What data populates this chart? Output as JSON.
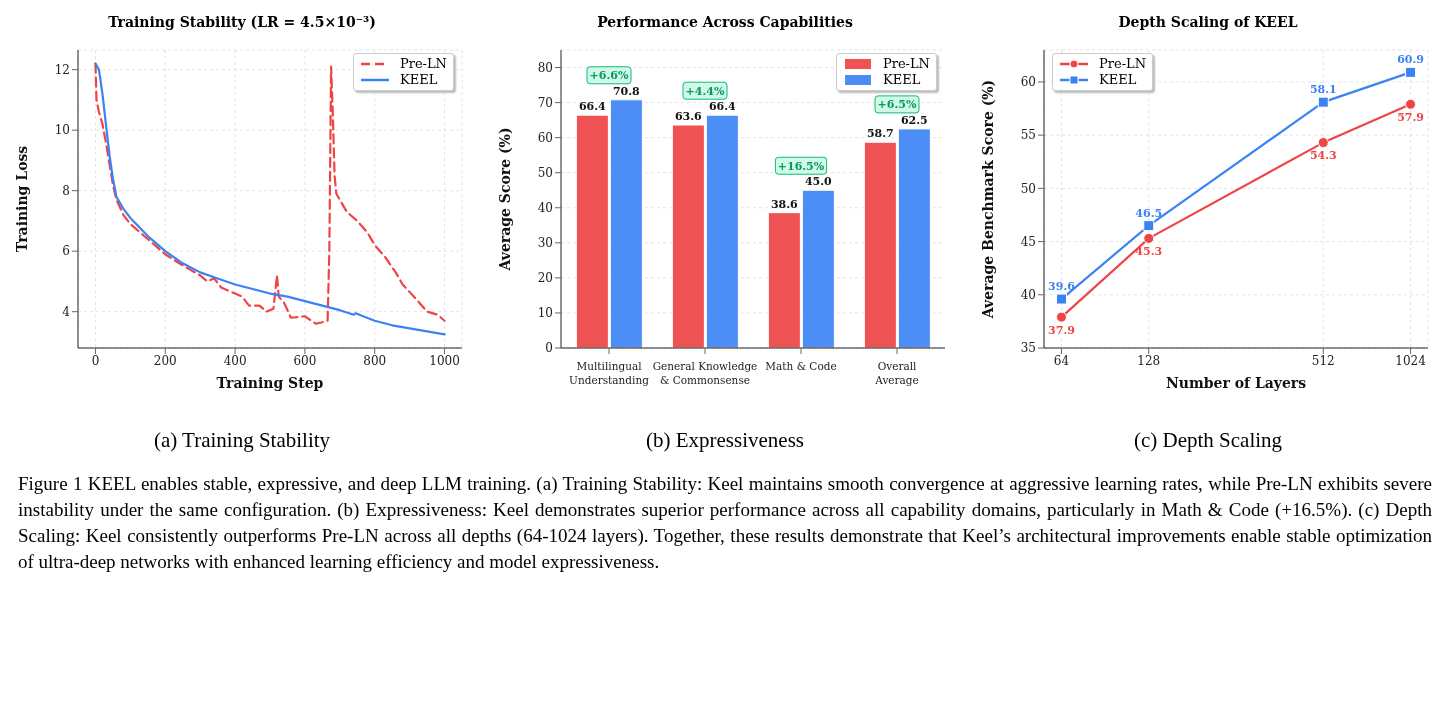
{
  "chart_data": [
    {
      "type": "line",
      "title": "Training Stability (LR = 4.5×10⁻³)",
      "xlabel": "Training Step",
      "ylabel": "Training Loss",
      "xlim": [
        -50,
        1050
      ],
      "xticks": [
        0,
        200,
        400,
        600,
        800,
        1000
      ],
      "ylim": [
        2.8,
        12.65
      ],
      "yticks": [
        4,
        6,
        8,
        10,
        12
      ],
      "grid": true,
      "legend": "top right",
      "series": [
        {
          "name": "Pre-LN",
          "color": "#ef4444",
          "line_style": "dashed",
          "x": [
            0,
            3,
            10,
            20,
            30,
            40,
            50,
            60,
            80,
            100,
            130,
            160,
            200,
            240,
            270,
            300,
            320,
            340,
            360,
            400,
            420,
            440,
            470,
            490,
            510,
            520,
            525,
            540,
            560,
            600,
            632,
            650,
            665,
            670,
            675,
            680,
            685,
            690,
            720,
            750,
            780,
            800,
            830,
            860,
            880,
            920,
            950,
            980,
            1000
          ],
          "values": [
            12.2,
            11.0,
            10.6,
            10.2,
            9.6,
            8.9,
            8.2,
            7.7,
            7.2,
            6.9,
            6.6,
            6.3,
            5.9,
            5.6,
            5.4,
            5.2,
            5.0,
            5.1,
            4.8,
            4.6,
            4.5,
            4.2,
            4.2,
            4.0,
            4.1,
            5.2,
            4.5,
            4.3,
            3.8,
            3.85,
            3.6,
            3.65,
            3.7,
            6.0,
            12.1,
            10.5,
            8.5,
            7.9,
            7.3,
            7.0,
            6.6,
            6.2,
            5.8,
            5.3,
            4.9,
            4.4,
            4.0,
            3.9,
            3.7
          ]
        },
        {
          "name": "KEEL",
          "color": "#3b82f6",
          "line_style": "solid",
          "x": [
            0,
            10,
            20,
            30,
            40,
            50,
            60,
            80,
            100,
            150,
            200,
            250,
            300,
            350,
            400,
            450,
            500,
            550,
            600,
            650,
            700,
            740,
            745,
            800,
            850,
            900,
            950,
            1000
          ],
          "values": [
            12.2,
            12.0,
            11.2,
            10.2,
            9.2,
            8.4,
            7.8,
            7.4,
            7.1,
            6.5,
            6.0,
            5.6,
            5.3,
            5.1,
            4.9,
            4.75,
            4.6,
            4.5,
            4.35,
            4.2,
            4.05,
            3.9,
            3.95,
            3.7,
            3.55,
            3.45,
            3.35,
            3.25
          ]
        }
      ],
      "annotations": [
        "(a) Training Stability",
        "Figure 1 KEEL enables stable, expressive, and deep LLM training. (a) Training Stability: Keel maintains smooth convergence at aggressive learning rates, while Pre-LN exhibits severe instability under the same configuration. (b) Expressiveness: Keel demonstrates superior performance across all capability domains, particularly in Math & Code (+16.5%). (c) Depth Scaling: Keel consistently outperforms Pre-LN across all depths (64-1024 layers). Together, these results demonstrate that Keel’s architectural improvements enable stable optimization of ultra-deep networks with enhanced learning efficiency and model expressiveness."
      ]
    },
    {
      "type": "bar",
      "title": "Performance Across Capabilities",
      "ylabel": "Average Score (%)",
      "categories": [
        "Multilingual\nUnderstanding",
        "General Knowledge\n& Commonsense",
        "Math & Code",
        "Overall\nAverage"
      ],
      "ylim": [
        0,
        85
      ],
      "yticks": [
        0,
        10,
        20,
        30,
        40,
        50,
        60,
        70,
        80
      ],
      "grid": "y",
      "legend": "top right",
      "series": [
        {
          "name": "Pre-LN",
          "color": "#ee5253",
          "values": [
            66.4,
            63.6,
            38.6,
            58.7
          ],
          "value_labels": [
            "66.4",
            "63.6",
            "38.6",
            "58.7"
          ]
        },
        {
          "name": "KEEL",
          "color": "#4c8df6",
          "values": [
            70.8,
            66.4,
            45.0,
            62.5
          ],
          "value_labels": [
            "70.8",
            "66.4",
            "45.0",
            "62.5"
          ]
        }
      ],
      "annotations": [
        "(b) Expressiveness",
        "+6.6%",
        "+4.4%",
        "+16.5%",
        "+6.5%"
      ]
    },
    {
      "type": "line",
      "title": "Depth Scaling of KEEL",
      "xlabel": "Number of Layers",
      "ylabel": "Average Benchmark Score (%)",
      "x": [
        64,
        128,
        512,
        1024
      ],
      "log": "x",
      "xlim": [
        55.7,
        1176
      ],
      "xticks": [
        64,
        128,
        512,
        1024
      ],
      "ylim": [
        35,
        63
      ],
      "yticks": [
        35,
        40,
        45,
        50,
        55,
        60
      ],
      "grid": true,
      "legend": "top left",
      "data_labels": true,
      "series": [
        {
          "name": "Pre-LN",
          "color": "#ef4444",
          "marker": "circle",
          "values": [
            37.9,
            45.3,
            54.3,
            57.9
          ]
        },
        {
          "name": "KEEL",
          "color": "#3b82f6",
          "marker": "square",
          "values": [
            39.6,
            46.5,
            58.1,
            60.9
          ]
        }
      ],
      "annotations": [
        "(c) Depth Scaling"
      ]
    }
  ]
}
